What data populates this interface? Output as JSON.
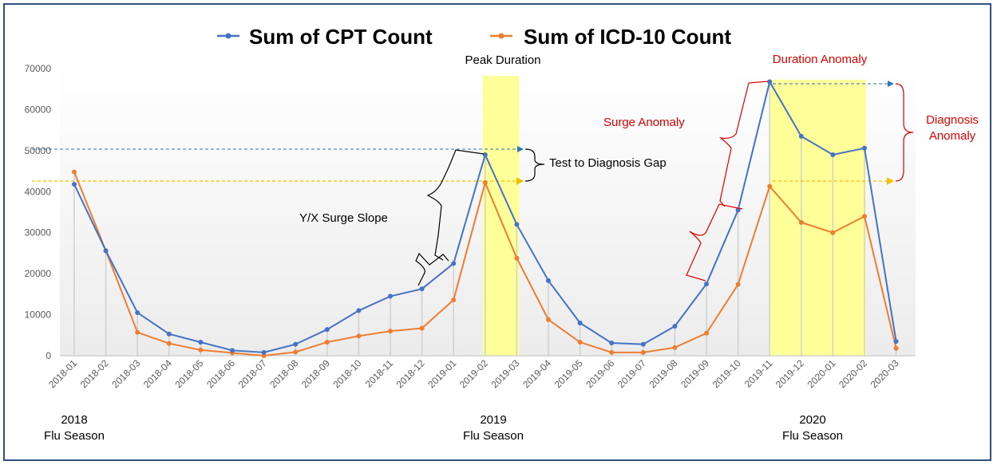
{
  "chart_data": {
    "type": "line",
    "categories": [
      "2018-01",
      "2018-02",
      "2018-03",
      "2018-04",
      "2018-05",
      "2018-06",
      "2018-07",
      "2018-08",
      "2018-09",
      "2018-10",
      "2018-11",
      "2018-12",
      "2019-01",
      "2019-02",
      "2019-03",
      "2019-04",
      "2019-05",
      "2019-06",
      "2019-07",
      "2019-08",
      "2019-09",
      "2019-10",
      "2019-11",
      "2019-12",
      "2020-01",
      "2020-02",
      "2020-03"
    ],
    "series": [
      {
        "name": "Sum of CPT Count",
        "color": "#4472c4",
        "values": [
          41800,
          25600,
          10500,
          5300,
          3300,
          1300,
          800,
          2800,
          6400,
          11000,
          14500,
          16300,
          22500,
          49000,
          32000,
          18300,
          8000,
          3100,
          2800,
          7200,
          17500,
          35500,
          66800,
          53500,
          49000,
          50600,
          3500
        ]
      },
      {
        "name": "Sum of ICD-10 Count",
        "color": "#ed7d31",
        "values": [
          44800,
          25600,
          5700,
          3000,
          1400,
          700,
          0,
          900,
          3300,
          4800,
          6000,
          6700,
          13600,
          42200,
          23800,
          8800,
          3300,
          800,
          800,
          2000,
          5500,
          17400,
          41300,
          32500,
          30000,
          34000,
          1800
        ]
      }
    ],
    "ylim": [
      0,
      70000
    ],
    "yticks": [
      "0",
      "10000",
      "20000",
      "30000",
      "40000",
      "50000",
      "60000",
      "70000"
    ],
    "grid": false,
    "legend_position": "top"
  },
  "annotations": {
    "peak_duration": "Peak Duration",
    "test_to_diagnosis_gap": "Test to Diagnosis Gap",
    "surge_slope": "Y/X Surge Slope",
    "surge_anomaly": "Surge Anomaly",
    "duration_anomaly": "Duration Anomaly",
    "diagnosis_anomaly_line1": "Diagnosis",
    "diagnosis_anomaly_line2": "Anomaly"
  },
  "seasons": [
    {
      "year": "2018",
      "label": "Flu Season"
    },
    {
      "year": "2019",
      "label": "Flu Season"
    },
    {
      "year": "2020",
      "label": "Flu Season"
    }
  ],
  "colors": {
    "highlight": "#ffff99",
    "annotation_red": "#e00000",
    "frame": "#2f4f7f"
  }
}
